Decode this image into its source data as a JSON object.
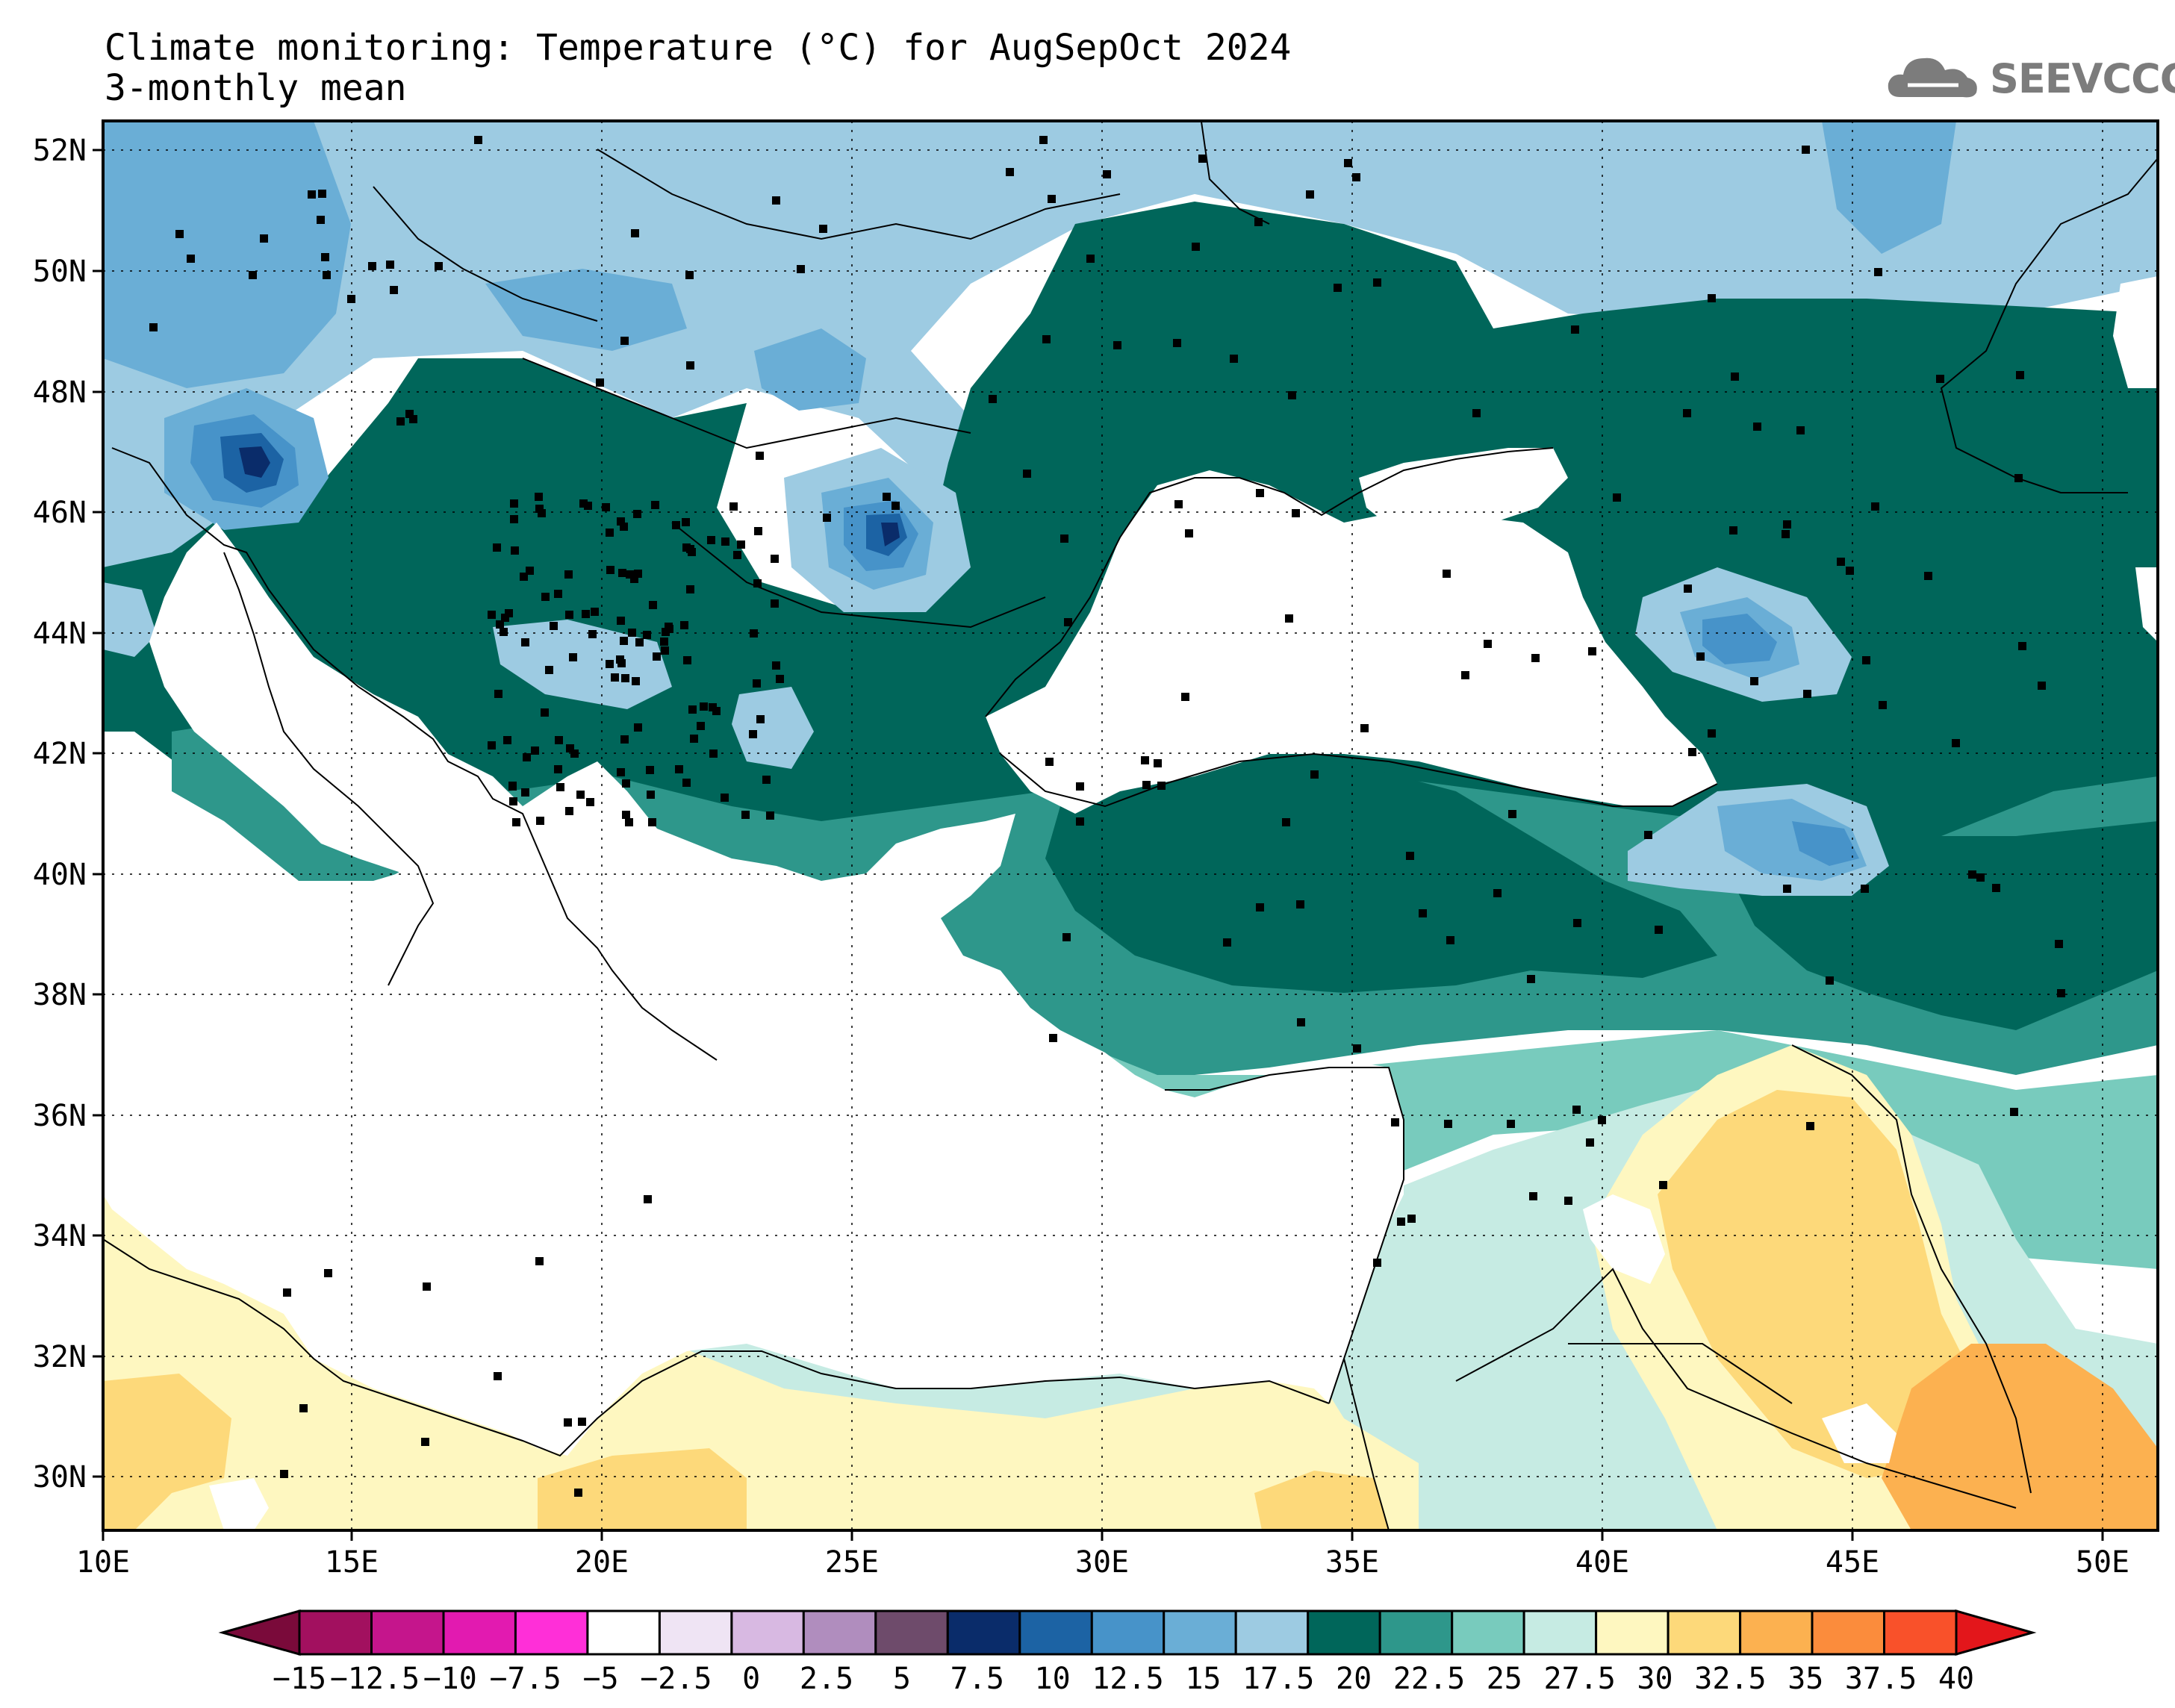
{
  "title": {
    "line1": "Climate monitoring: Temperature (°C) for AugSepOct 2024",
    "line2": "3-monthly mean"
  },
  "logo": {
    "text": "SEEVCCC",
    "icon": "cloud-icon"
  },
  "axes": {
    "lat_labels": [
      "52N",
      "50N",
      "48N",
      "46N",
      "44N",
      "42N",
      "40N",
      "38N",
      "36N",
      "34N",
      "32N",
      "30N"
    ],
    "lon_labels": [
      "10E",
      "15E",
      "20E",
      "25E",
      "30E",
      "35E",
      "40E",
      "45E",
      "50E"
    ]
  },
  "colorbar": {
    "labels": [
      "−15",
      "−12.5",
      "−10",
      "−7.5",
      "−5",
      "−2.5",
      "0",
      "2.5",
      "5",
      "7.5",
      "10",
      "12.5",
      "15",
      "17.5",
      "20",
      "22.5",
      "25",
      "27.5",
      "30",
      "32.5",
      "35",
      "37.5",
      "40"
    ],
    "colors": {
      "below": "#7a0a3a",
      "bins": [
        "#a2105f",
        "#c5158c",
        "#e21ab0",
        "#ff2fd8",
        "#ffffff",
        "#efe4f4",
        "#d8b9e2",
        "#b08dbe",
        "#6e4b6b",
        "#0a2c6a",
        "#1c63a4",
        "#4793c9",
        "#6aaed6",
        "#9dcbe2",
        "#00665a",
        "#2e978b",
        "#78cbbd",
        "#c6ebe3",
        "#fef7c0",
        "#fdd97a",
        "#fcb150",
        "#fb8c3c",
        "#f9512a"
      ],
      "above": "#e3161b"
    }
  },
  "palette": {
    "sea": "#ffffff",
    "t12": "#4793c9",
    "t15": "#6aaed6",
    "t17": "#9dcbe2",
    "t20": "#00665a",
    "t22": "#2e978b",
    "t25": "#78cbbd",
    "t27": "#c6ebe3",
    "t30": "#fef7c0",
    "t32": "#fdd97a",
    "t35": "#fcb150",
    "t10": "#1c63a4",
    "t7": "#0a2c6a"
  }
}
